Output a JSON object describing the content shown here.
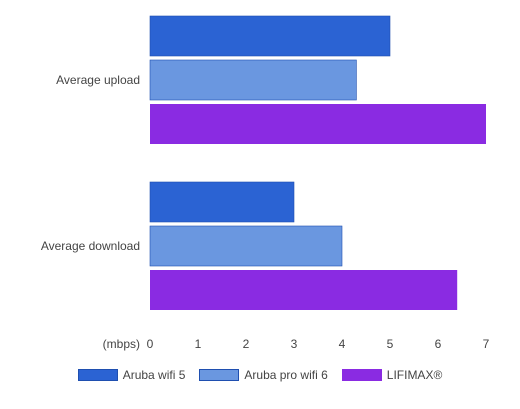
{
  "chart_data": {
    "type": "bar",
    "orientation": "horizontal",
    "categories": [
      "Average upload",
      "Average download"
    ],
    "series": [
      {
        "name": "Aruba wifi 5",
        "values": [
          5.0,
          3.0
        ],
        "color": "#2b63d3"
      },
      {
        "name": "Aruba pro wifi 6",
        "values": [
          4.3,
          4.0
        ],
        "color": "#6a97e0"
      },
      {
        "name": "LIFIMAX®",
        "values": [
          7.0,
          6.4
        ],
        "color": "#8a2be2"
      }
    ],
    "xunit": "(mbps)",
    "xlim": [
      0,
      7
    ],
    "xticks": [
      "0",
      "1",
      "2",
      "3",
      "4",
      "5",
      "6",
      "7"
    ],
    "grid": false,
    "legend": "bottom"
  }
}
